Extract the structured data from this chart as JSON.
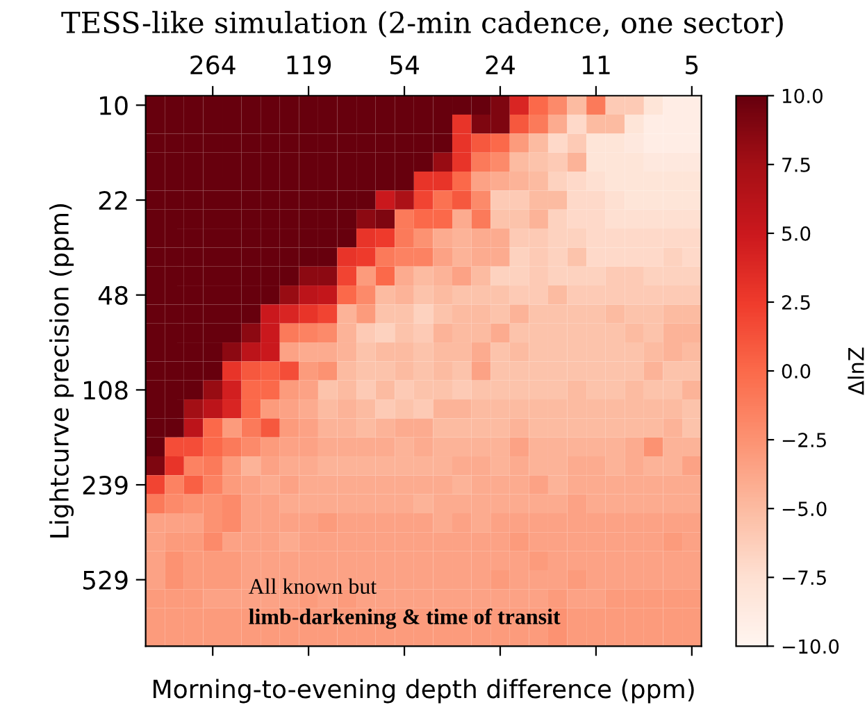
{
  "chart_data": {
    "type": "heatmap",
    "title": "TESS-like simulation (2-min cadence, one sector)",
    "xlabel": "Morning-to-evening depth difference (ppm)",
    "ylabel": "Lightcurve precision (ppm)",
    "clabel": "ΔlnZ",
    "categories": [
      null,
      null,
      null,
      "264",
      null,
      null,
      null,
      null,
      "119",
      null,
      null,
      null,
      null,
      "54",
      null,
      null,
      null,
      null,
      "24",
      null,
      null,
      null,
      null,
      "11",
      null,
      null,
      null,
      null,
      "5"
    ],
    "y_categories": [
      "10",
      null,
      null,
      null,
      null,
      "22",
      null,
      null,
      null,
      null,
      "48",
      null,
      null,
      null,
      null,
      "108",
      null,
      null,
      null,
      null,
      "239",
      null,
      null,
      null,
      null,
      "529",
      null,
      null,
      null
    ],
    "cells": [
      [
        10,
        10,
        10,
        10,
        10,
        10,
        10,
        10,
        10,
        10,
        10,
        10,
        10,
        10,
        10,
        10,
        10,
        10,
        9,
        4,
        0,
        -2,
        -5,
        -1,
        -6,
        -6,
        -8,
        -9,
        -9
      ],
      [
        10,
        10,
        10,
        10,
        10,
        10,
        10,
        10,
        10,
        10,
        10,
        10,
        10,
        10,
        10,
        10,
        3,
        9,
        9,
        1,
        -1,
        -4,
        -7,
        -5,
        -5,
        -8,
        -9,
        -9,
        -9
      ],
      [
        10,
        10,
        10,
        10,
        10,
        10,
        10,
        10,
        10,
        10,
        10,
        10,
        10,
        10,
        10,
        10,
        3,
        1,
        0,
        -3,
        -5,
        -7,
        -6,
        -8,
        -8,
        -8.5,
        -9,
        -9,
        -9
      ],
      [
        10,
        10,
        10,
        10,
        10,
        10,
        10,
        10,
        10,
        10,
        10,
        10,
        10,
        10,
        10,
        8,
        3,
        -1,
        -2,
        -5,
        -5.5,
        -6,
        -4.5,
        -8,
        -8,
        -8,
        -8.5,
        -8.5,
        -8.5
      ],
      [
        10,
        10,
        10,
        10,
        10,
        10,
        10,
        10,
        10,
        10,
        10,
        10,
        10,
        10,
        3,
        3,
        0,
        -3.5,
        -4,
        -4.5,
        -5,
        -6.5,
        -7,
        -7.5,
        -8,
        -8,
        -8,
        -8,
        -8
      ],
      [
        10,
        10,
        10,
        10,
        10,
        10,
        10,
        10,
        10,
        10,
        10,
        10,
        5,
        7,
        2,
        -0.5,
        1,
        -2,
        -6,
        -6,
        -5,
        -5,
        -7,
        -7,
        -7.5,
        -8,
        -8,
        -8,
        -8
      ],
      [
        10,
        10,
        10,
        10,
        10,
        10,
        10,
        10,
        10,
        10,
        10,
        8.5,
        9,
        -1,
        0,
        0,
        -4,
        -1,
        -5.5,
        -5.5,
        -4.5,
        -6.5,
        -7,
        -7,
        -7.5,
        -7.5,
        -7.5,
        -7.5,
        -7.5
      ],
      [
        10,
        10,
        10,
        10,
        10,
        10,
        10,
        10,
        10,
        10,
        10,
        3,
        2.5,
        -1,
        -2.5,
        -4,
        -4.5,
        -4,
        -4,
        -6,
        -6,
        -6.5,
        -6.5,
        -7,
        -7,
        -7,
        -7,
        -7,
        -7
      ],
      [
        10,
        10,
        10,
        10,
        10,
        10,
        10,
        10,
        10,
        10,
        3,
        2.5,
        -1,
        -1.5,
        -1.5,
        -3.5,
        -4.5,
        -4,
        -4,
        -6.5,
        -6,
        -6.5,
        -5.5,
        -7,
        -7,
        -7,
        -7,
        -6.5,
        -7
      ],
      [
        10,
        10,
        10,
        10,
        10,
        10,
        10,
        10,
        8.5,
        8.5,
        2,
        -3,
        0,
        -4,
        -5,
        -4.5,
        -3.5,
        -5,
        -6.5,
        -6.5,
        -6,
        -6.5,
        -6.5,
        -6.5,
        -6,
        -6,
        -6.5,
        -6.5,
        -6.5
      ],
      [
        10,
        10,
        10,
        10,
        10,
        10,
        10,
        8,
        6,
        5.5,
        0,
        -2,
        -5,
        -4.5,
        -5.5,
        -5,
        -5.5,
        -5.5,
        -5.5,
        -6,
        -6,
        -5,
        -6,
        -6,
        -6,
        -6,
        -6,
        -6,
        -6
      ],
      [
        10,
        10,
        10,
        10,
        10,
        10,
        5,
        4,
        3,
        2,
        -4.5,
        -3,
        -5.5,
        -5.5,
        -6.5,
        -5.5,
        -5,
        -5,
        -5.5,
        -4.5,
        -5.5,
        -5.5,
        -5.5,
        -5.5,
        -5,
        -5.5,
        -5.5,
        -5,
        -5
      ],
      [
        10,
        10,
        10,
        10,
        10,
        8.5,
        5,
        -1,
        -1.5,
        -2,
        -4.5,
        -6,
        -6.5,
        -5.5,
        -6,
        -4.5,
        -5,
        -5,
        -4,
        -5.5,
        -5.5,
        -5.5,
        -5.5,
        -5.5,
        -5.5,
        -5,
        -5.5,
        -4.5,
        -4.5
      ],
      [
        10,
        10,
        10,
        10,
        8.5,
        6,
        5,
        -3.5,
        -4,
        -4,
        -4.5,
        -5.5,
        -5,
        -5,
        -5.5,
        -5,
        -5,
        -4,
        -5.5,
        -5,
        -5.5,
        -5.5,
        -5.5,
        -5.5,
        -5.5,
        -5.5,
        -5,
        -4.5,
        -5
      ],
      [
        10,
        10,
        10,
        10,
        3,
        1,
        0.5,
        1.5,
        -3,
        -2.5,
        -5,
        -5.5,
        -5.5,
        -5,
        -5.5,
        -5,
        -5.5,
        -3.5,
        -5.5,
        -5.5,
        -5.5,
        -5.5,
        -5.5,
        -5.5,
        -5.5,
        -5.5,
        -4.5,
        -5.5,
        -5.5
      ],
      [
        10,
        10,
        10,
        8,
        4.5,
        0,
        0,
        -3,
        -3.5,
        -5.5,
        -5,
        -6,
        -5,
        -6,
        -5.5,
        -5.5,
        -6,
        -5.5,
        -5.5,
        -5.5,
        -5.5,
        -5.5,
        -5,
        -5.5,
        -5.5,
        -5,
        -5.5,
        -5.5,
        -4.5
      ],
      [
        10,
        10,
        7.5,
        6,
        4,
        0,
        -3,
        -3.5,
        -4,
        -5,
        -4.5,
        -5,
        -6,
        -5.5,
        -6,
        -4.5,
        -4.5,
        -5,
        -5,
        -5,
        -5,
        -5,
        -5,
        -5,
        -5,
        -5,
        -5,
        -5,
        -5.5
      ],
      [
        10,
        10,
        6,
        0,
        -3,
        -1,
        1,
        -3,
        -3.5,
        -4.5,
        -4.5,
        -5,
        -4.5,
        -4,
        -4,
        -5,
        -5,
        -5,
        -5,
        -4.5,
        -5,
        -5,
        -5,
        -5,
        -5,
        -5,
        -5,
        -4.5,
        -5.5
      ],
      [
        10,
        1.5,
        1.5,
        0,
        -1,
        -2,
        -3,
        -3.5,
        -3.5,
        -4,
        -4,
        -4,
        -4,
        -4.5,
        -4,
        -4.5,
        -4.5,
        -4.5,
        -4.5,
        -3.5,
        -4.5,
        -4.5,
        -4.5,
        -4.5,
        -4.5,
        -4,
        -2.5,
        -4.5,
        -4.5
      ],
      [
        9,
        3,
        -1.5,
        -1,
        -3,
        -4.5,
        -3.5,
        -4,
        -4,
        -4.5,
        -4.5,
        -4.5,
        -4.5,
        -4.5,
        -4.5,
        -4.5,
        -4,
        -4,
        -4.5,
        -4,
        -4.5,
        -4.5,
        -4,
        -4,
        -4.5,
        -4,
        -4.5,
        -4.5,
        -3.5
      ],
      [
        2,
        -1.5,
        0.5,
        -1.5,
        -3,
        -3.5,
        -4,
        -3.5,
        -4,
        -4,
        -4,
        -4,
        -4,
        -4,
        -4,
        -4,
        -4.5,
        -4,
        -4,
        -4,
        -3.5,
        -4.5,
        -4,
        -4,
        -4,
        -4,
        -4,
        -4,
        -4
      ],
      [
        -1,
        -2,
        -2.5,
        -2.5,
        -2,
        -3.5,
        -3.5,
        -4,
        -4,
        -4,
        -4,
        -4,
        -4,
        -4,
        -4.5,
        -4,
        -4,
        -4,
        -4,
        -4,
        -4,
        -4,
        -3.5,
        -4,
        -4,
        -4,
        -4,
        -4,
        -4
      ],
      [
        -3.5,
        -3.5,
        -3.5,
        -2.5,
        -2,
        -3.5,
        -3.5,
        -3.5,
        -3.5,
        -3,
        -3.5,
        -3.5,
        -3.5,
        -3.5,
        -3.5,
        -4,
        -3.5,
        -4,
        -3.5,
        -3.5,
        -3.5,
        -3.5,
        -3.5,
        -3.5,
        -3.5,
        -3.5,
        -3.5,
        -3.5,
        -3.5
      ],
      [
        -3.5,
        -3,
        -3,
        -2,
        -3.5,
        -3.5,
        -3.5,
        -4,
        -3.5,
        -3.5,
        -3.5,
        -3.5,
        -3.5,
        -3.5,
        -3.5,
        -3.5,
        -3.5,
        -3.5,
        -3.5,
        -3,
        -3.5,
        -3.5,
        -3.5,
        -3.5,
        -3.5,
        -3.5,
        -3.5,
        -3,
        -3.5
      ],
      [
        -3.5,
        -2.5,
        -3,
        -3,
        -3,
        -3.5,
        -3.5,
        -3.5,
        -3.5,
        -3.5,
        -3.5,
        -3.5,
        -3.5,
        -3.5,
        -3.5,
        -3.5,
        -3.5,
        -3.5,
        -3.5,
        -3.5,
        -3,
        -3.5,
        -3.5,
        -3.5,
        -3.5,
        -3.5,
        -3.5,
        -3.5,
        -3.5
      ],
      [
        -3.5,
        -2.5,
        -3,
        -3,
        -3,
        -3.5,
        -3.5,
        -3.5,
        -3.5,
        -3.5,
        -3.5,
        -3.5,
        -3.5,
        -3.5,
        -3.5,
        -3.5,
        -3.5,
        -3.5,
        -3,
        -3.5,
        -3.5,
        -3.5,
        -3,
        -3.5,
        -3.5,
        -3.5,
        -3.5,
        -3.5,
        -3.5
      ],
      [
        -3,
        -3,
        -3,
        -3.5,
        -3.5,
        -3.5,
        -3.5,
        -3.5,
        -3,
        -3.5,
        -3,
        -3.5,
        -3.5,
        -3.5,
        -3.5,
        -3.5,
        -3.5,
        -3.5,
        -3.5,
        -3.5,
        -3.5,
        -3,
        -3.5,
        -3.5,
        -3,
        -3,
        -3,
        -3,
        -3
      ],
      [
        -3,
        -3,
        -3,
        -3,
        -3,
        -3,
        -3,
        -3,
        -3,
        -3,
        -3,
        -3,
        -3,
        -3,
        -3,
        -3,
        -3,
        -3,
        -3,
        -3,
        -3,
        -2.5,
        -3,
        -3,
        -3,
        -3,
        -3,
        -3,
        -3
      ],
      [
        -3,
        -3,
        -3,
        -3,
        -3,
        -3,
        -3,
        -3,
        -3,
        -3,
        -3,
        -3,
        -3,
        -3,
        -3,
        -3,
        -3,
        -3,
        -3,
        -3,
        -3,
        -2.5,
        -3,
        -3,
        -3,
        -3,
        -3,
        -3,
        -3
      ]
    ],
    "clim": [
      -10,
      10
    ],
    "cticks": [
      {
        "value": -10,
        "label": "−10.0"
      },
      {
        "value": -7.5,
        "label": "−7.5"
      },
      {
        "value": -5,
        "label": "−5.0"
      },
      {
        "value": -2.5,
        "label": "−2.5"
      },
      {
        "value": 0,
        "label": "0.0"
      },
      {
        "value": 2.5,
        "label": "2.5"
      },
      {
        "value": 5,
        "label": "5.0"
      },
      {
        "value": 7.5,
        "label": "7.5"
      },
      {
        "value": 10,
        "label": "10.0"
      }
    ],
    "annotations": [
      "All known but",
      "limb-darkening & time of transit"
    ]
  }
}
